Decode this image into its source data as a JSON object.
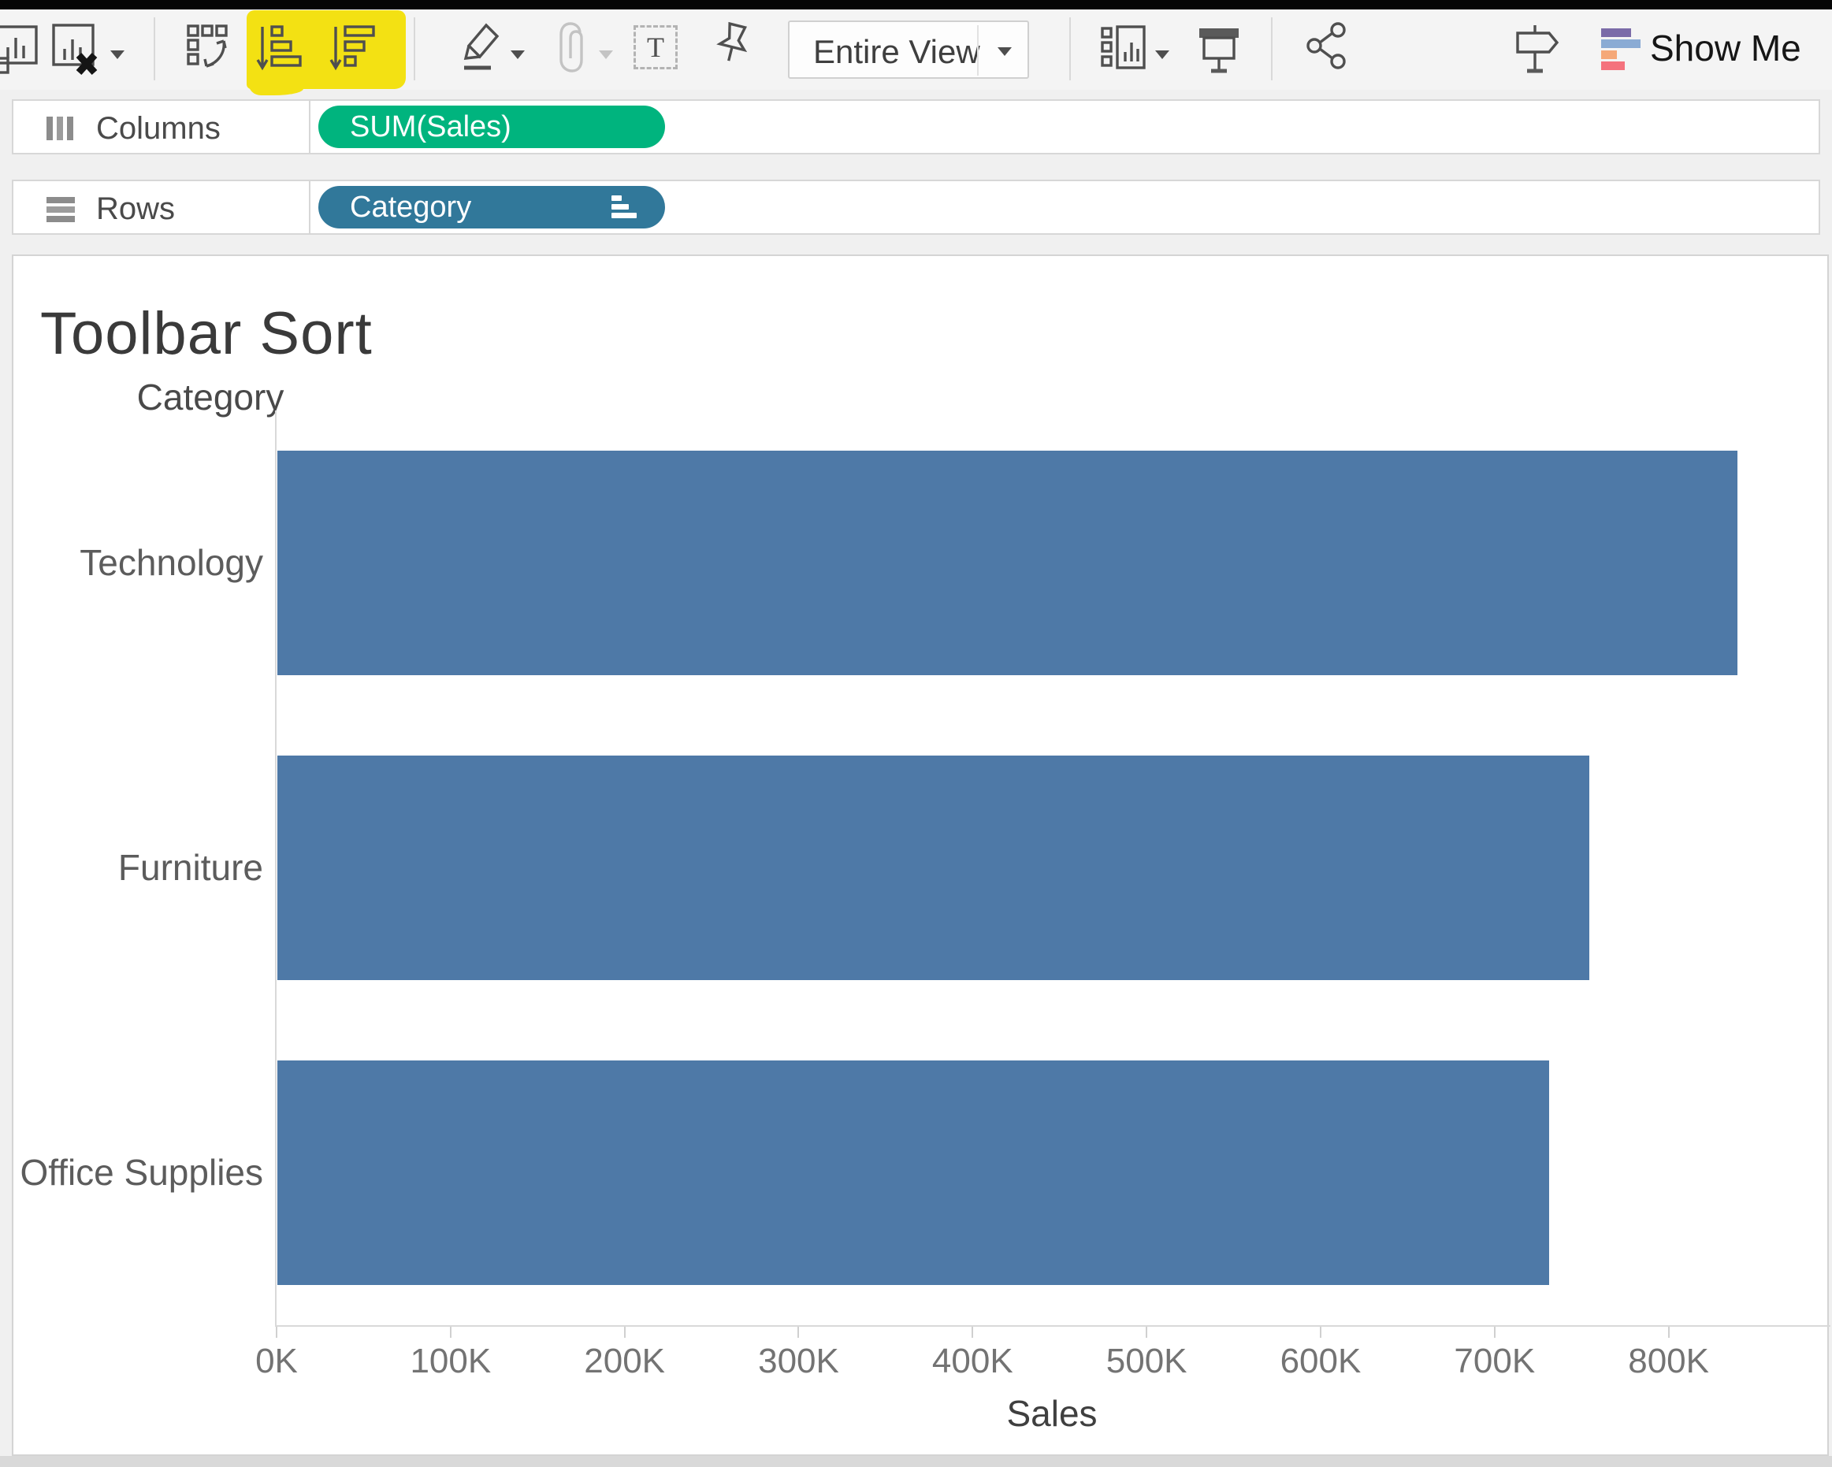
{
  "toolbar": {
    "view_mode": "Entire View",
    "show_me_label": "Show Me",
    "text_icon_glyph": "T",
    "highlight": {
      "color": "#f3e113",
      "buttons": [
        "sort-ascending",
        "sort-descending"
      ]
    }
  },
  "shelves": {
    "columns": {
      "label": "Columns",
      "pill": {
        "label": "SUM(Sales)",
        "color": "#00b47e"
      }
    },
    "rows": {
      "label": "Rows",
      "pill": {
        "label": "Category",
        "color": "#31789a",
        "sorted": "descending"
      }
    }
  },
  "sheet": {
    "title": "Toolbar Sort"
  },
  "chart_data": {
    "type": "bar",
    "orientation": "horizontal",
    "title": "Toolbar Sort",
    "row_header": "Category",
    "categories": [
      "Technology",
      "Furniture",
      "Office Supplies"
    ],
    "values": [
      839000,
      754000,
      731000
    ],
    "sort": "descending",
    "xlabel": "Sales",
    "ylabel": "Category",
    "ticks": [
      "0K",
      "100K",
      "200K",
      "300K",
      "400K",
      "500K",
      "600K",
      "700K",
      "800K"
    ],
    "tick_values": [
      0,
      100000,
      200000,
      300000,
      400000,
      500000,
      600000,
      700000,
      800000
    ],
    "xlim": [
      0,
      893000
    ],
    "grid": "off",
    "legend": "none",
    "bar_color": "#4e79a7"
  }
}
